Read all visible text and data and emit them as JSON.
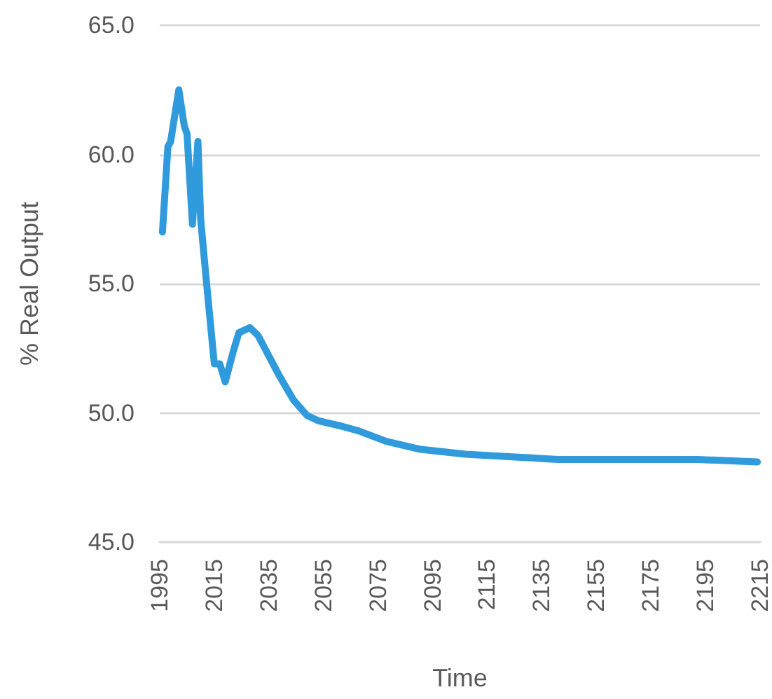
{
  "chart_data": {
    "type": "line",
    "xlabel": "Time",
    "ylabel": "% Real Output",
    "x": [
      1996,
      1998,
      1999,
      2002,
      2004,
      2005,
      2007,
      2009,
      2010,
      2012,
      2015,
      2017,
      2019,
      2022,
      2024,
      2028,
      2031,
      2035,
      2039,
      2044,
      2049,
      2053,
      2061,
      2068,
      2078,
      2090,
      2107,
      2124,
      2141,
      2158,
      2175,
      2192,
      2214
    ],
    "series": [
      {
        "color": "#309bdc",
        "values": [
          57.0,
          60.3,
          60.5,
          62.5,
          61.1,
          60.8,
          57.3,
          60.5,
          57.5,
          55.2,
          51.9,
          51.9,
          51.2,
          52.4,
          53.1,
          53.3,
          53.0,
          52.2,
          51.4,
          50.5,
          49.9,
          49.7,
          49.5,
          49.3,
          48.9,
          48.6,
          48.4,
          48.3,
          48.2,
          48.2,
          48.2,
          48.2,
          48.1
        ]
      }
    ],
    "xlim": [
      1995,
      2215
    ],
    "xticks": [
      1995,
      2015,
      2035,
      2055,
      2075,
      2095,
      2115,
      2135,
      2155,
      2175,
      2195,
      2215
    ],
    "ylim": [
      45,
      65
    ],
    "yticks": [
      {
        "value": 45,
        "label": "45.0"
      },
      {
        "value": 50,
        "label": "50.0"
      },
      {
        "value": 55,
        "label": "55.0"
      },
      {
        "value": 60,
        "label": "60.0"
      },
      {
        "value": 65,
        "label": "65.0"
      }
    ],
    "grid": "y"
  }
}
